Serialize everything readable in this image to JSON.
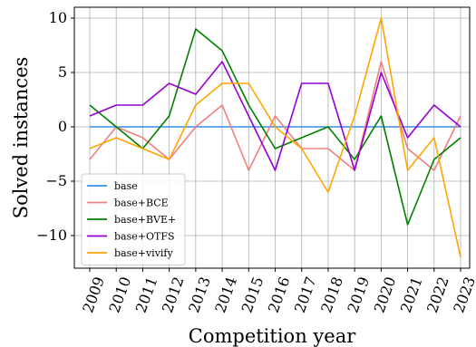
{
  "chart_data": {
    "type": "line",
    "xlabel": "Competition year",
    "ylabel": "Solved instances",
    "x": [
      "2009",
      "2010",
      "2011",
      "2012",
      "2013",
      "2014",
      "2015",
      "2016",
      "2017",
      "2018",
      "2019",
      "2020",
      "2021",
      "2022",
      "2023"
    ],
    "ylim": [
      -13,
      11
    ],
    "yticks": [
      10,
      5,
      0,
      -5,
      -10
    ],
    "ytick_labels": [
      "10",
      "5",
      "0",
      "−5",
      "−10"
    ],
    "grid": true,
    "legend_position": "bottom-left",
    "series": [
      {
        "name": "base",
        "color": "#3a8ee6",
        "values": [
          0,
          0,
          0,
          0,
          0,
          0,
          0,
          0,
          0,
          0,
          0,
          0,
          0,
          0,
          0
        ]
      },
      {
        "name": "base+BCE",
        "color": "#f08080",
        "values": [
          -3,
          0,
          -1,
          -3,
          0,
          2,
          -4,
          1,
          -2,
          -2,
          -4,
          6,
          -2,
          -4,
          1
        ]
      },
      {
        "name": "base+BVE+",
        "color": "#008000",
        "values": [
          2,
          0,
          -2,
          1,
          9,
          7,
          2,
          -2,
          -1,
          0,
          -3,
          1,
          -9,
          -3,
          -1
        ]
      },
      {
        "name": "base+OTFS",
        "color": "#9400d3",
        "values": [
          1,
          2,
          2,
          4,
          3,
          6,
          1,
          -4,
          4,
          4,
          -4,
          5,
          -1,
          2,
          0
        ]
      },
      {
        "name": "base+vivify",
        "color": "#ffa500",
        "values": [
          -2,
          -1,
          -2,
          -3,
          2,
          4,
          4,
          0,
          -2,
          -6,
          1,
          10,
          -4,
          -1,
          -12
        ]
      }
    ]
  }
}
